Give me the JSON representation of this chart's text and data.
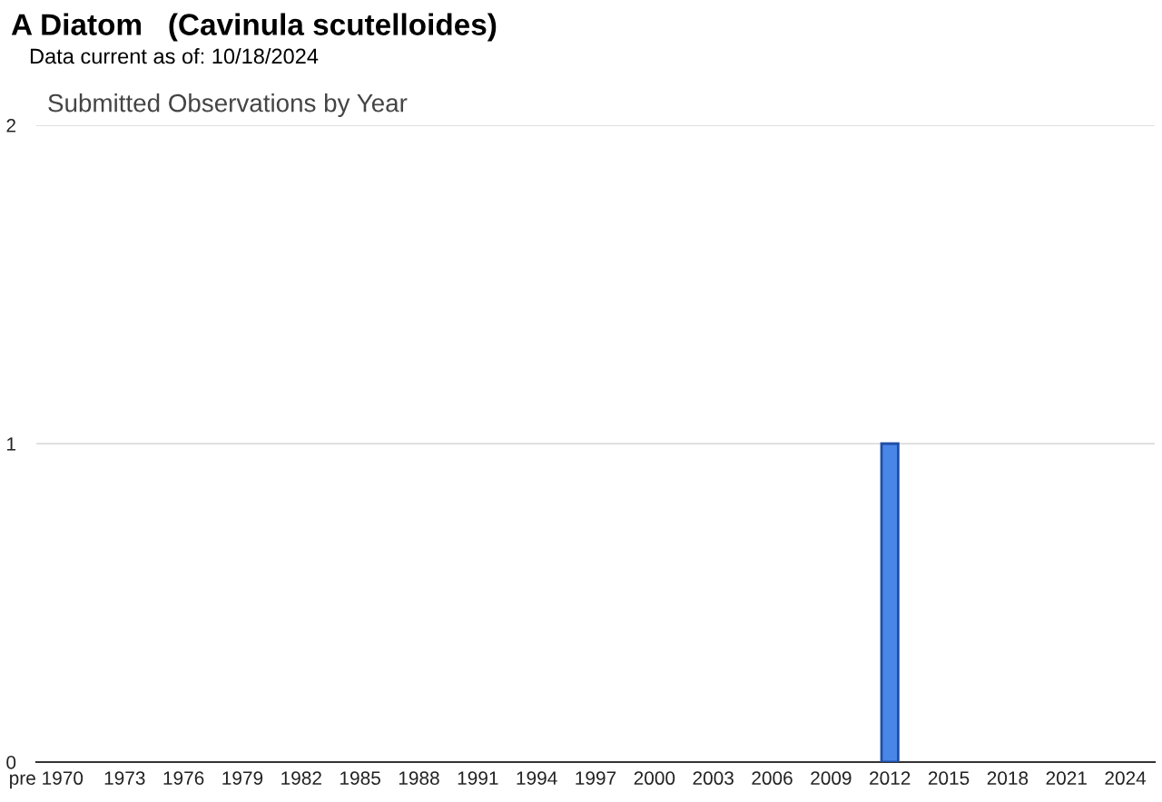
{
  "chart_data": {
    "type": "bar",
    "title": "Submitted Observations by Year",
    "annotations": [
      "A Diatom   (Cavinula scutelloides)",
      "Data current as of: 10/18/2024"
    ],
    "categories": [
      "pre 1970",
      null,
      null,
      null,
      "1973",
      null,
      null,
      "1976",
      null,
      null,
      "1979",
      null,
      null,
      "1982",
      null,
      null,
      "1985",
      null,
      null,
      "1988",
      null,
      null,
      "1991",
      null,
      null,
      "1994",
      null,
      null,
      "1997",
      null,
      null,
      "2000",
      null,
      null,
      "2003",
      null,
      null,
      "2006",
      null,
      null,
      "2009",
      null,
      null,
      "2012",
      null,
      null,
      "2015",
      null,
      null,
      "2018",
      null,
      null,
      "2021",
      null,
      null,
      "2024",
      null
    ],
    "values": [
      0,
      0,
      0,
      0,
      0,
      0,
      0,
      0,
      0,
      0,
      0,
      0,
      0,
      0,
      0,
      0,
      0,
      0,
      0,
      0,
      0,
      0,
      0,
      0,
      0,
      0,
      0,
      0,
      0,
      0,
      0,
      0,
      0,
      0,
      0,
      0,
      0,
      0,
      0,
      0,
      0,
      0,
      0,
      1,
      0,
      0,
      0,
      0,
      0,
      0,
      0,
      0,
      0,
      0,
      0,
      0,
      0
    ],
    "color": "#4a86e8",
    "ylim": [
      0,
      2
    ],
    "yticks": [
      0,
      1,
      2
    ],
    "grid": "y",
    "legend": false
  }
}
